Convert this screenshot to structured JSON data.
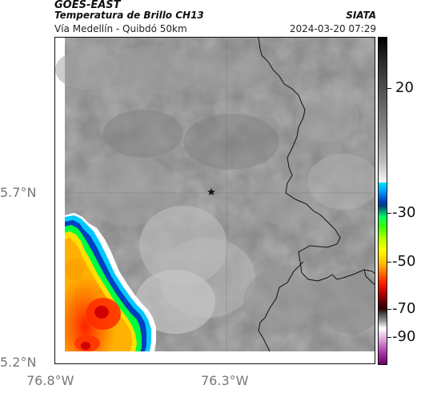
{
  "header": {
    "line1": "GOES-EAST",
    "line2": "Temperatura de Brillo CH13",
    "subtitle": "Vía Medellín - Quibdó 50km",
    "brand": "SIATA",
    "timestamp": "2024-03-20 07:29"
  },
  "axes": {
    "y_ticks": [
      "5.7°N",
      "5.2°N"
    ],
    "x_ticks": [
      "76.8°W",
      "76.3°W"
    ]
  },
  "colorbar": {
    "ticks": [
      "20",
      "-30",
      "-50",
      "-70",
      "-90"
    ],
    "colors": {
      "gray_high": "#000000",
      "gray_low": "#f5f5f5",
      "cyan": "#00e5ff",
      "blue": "#0040c0",
      "green": "#00ff60",
      "yellow": "#ffff00",
      "orange": "#ff7000",
      "red": "#ff2000",
      "dark_red": "#600000",
      "magenta": "#b040b0"
    }
  },
  "map": {
    "marker": "star-icon",
    "background_color": "#8a8a8a",
    "border_color": "#111111"
  }
}
